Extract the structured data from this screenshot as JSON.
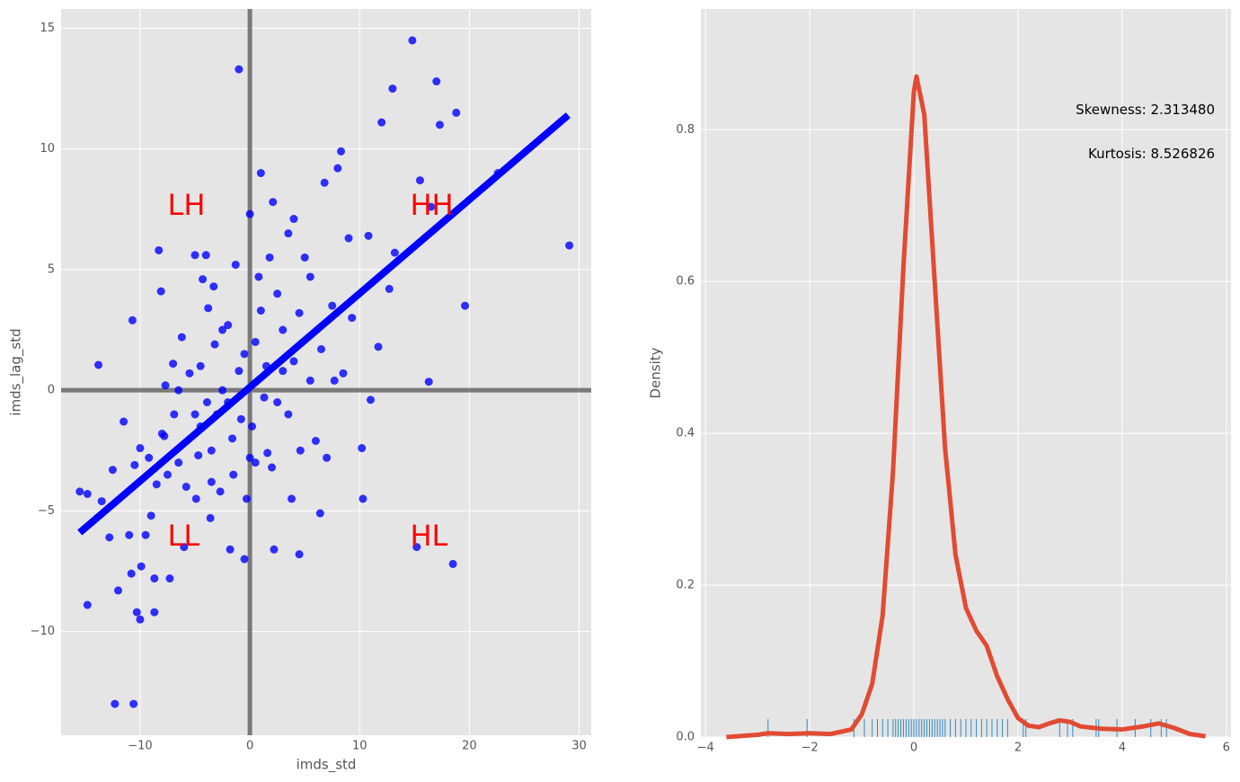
{
  "chart_data": [
    {
      "type": "scatter",
      "xlabel": "imds_std",
      "ylabel": "imds_lag_std",
      "xlim": [
        -17.2,
        31.1
      ],
      "ylim": [
        -14.3,
        15.8
      ],
      "xticks": [
        {
          "value": -10,
          "label": "−10"
        },
        0,
        10,
        20,
        30
      ],
      "yticks": [
        {
          "value": -10,
          "label": "−10"
        },
        {
          "value": -5,
          "label": "−5"
        },
        0,
        5,
        10,
        15
      ],
      "grid": true,
      "color": "#0000ff",
      "x": [
        -15.5,
        -14.8,
        -14.8,
        -13.8,
        -13.5,
        -12.8,
        -12.5,
        -12.3,
        -12,
        -11.5,
        -10.7,
        -10.8,
        -10.6,
        -10.5,
        -10.3,
        -10,
        -10,
        -9.9,
        -9.2,
        -9,
        -8.7,
        -8.7,
        -8.5,
        -8.3,
        -8.1,
        -7.8,
        -7.7,
        -7.5,
        -7.3,
        -7,
        -6.9,
        -6.5,
        -6.2,
        -6,
        -5.8,
        -5.5,
        -5,
        -4.9,
        -4.7,
        -4.5,
        -4.3,
        -4,
        -3.9,
        -3.8,
        -3.6,
        -3.5,
        -3.3,
        -3.2,
        -3,
        -2.7,
        -2.5,
        -2,
        -1.8,
        -1.6,
        -1.3,
        -1,
        -0.8,
        -0.5,
        -0.3,
        0,
        0.2,
        0.5,
        0.8,
        1,
        1.3,
        1.6,
        1.8,
        2.1,
        2.2,
        2.5,
        3,
        3.5,
        3.8,
        4,
        4.5,
        4.6,
        5,
        5.5,
        6,
        6.4,
        6.8,
        7,
        7.5,
        8,
        8.3,
        9,
        9.3,
        10.2,
        10.3,
        10.8,
        11,
        11.7,
        12,
        12.7,
        13,
        13.2,
        15.2,
        14.8,
        15.5,
        16.3,
        16.5,
        17,
        17.3,
        18.5,
        18.8,
        19.6,
        22.6,
        29.1,
        0.5,
        -0.5,
        1.5,
        2.5,
        -2,
        -1,
        3,
        4.5,
        -5,
        0,
        2,
        -3.5,
        5.5,
        6.5,
        7.7,
        8.5,
        -6.5,
        -2.5,
        1,
        3.5,
        4,
        -4.5,
        -1.5,
        -8,
        -9.5,
        -11
      ],
      "y": [
        -4.2,
        -4.3,
        -8.9,
        1.05,
        -4.6,
        -6.1,
        -3.3,
        -13,
        -8.3,
        -1.3,
        2.9,
        -7.6,
        -13,
        -3.1,
        -9.2,
        -9.5,
        -2.4,
        -7.3,
        -2.8,
        -5.2,
        -7.8,
        -9.2,
        -3.9,
        5.8,
        4.1,
        -1.9,
        0.2,
        -3.5,
        -7.8,
        1.1,
        -1,
        -3,
        2.2,
        -6.5,
        -4,
        0.7,
        5.6,
        -4.5,
        -2.7,
        -1.5,
        4.6,
        5.6,
        -0.5,
        3.4,
        -5.3,
        -2.5,
        4.3,
        1.9,
        -1,
        -4.2,
        0,
        2.7,
        -6.6,
        -2,
        5.2,
        13.3,
        -1.2,
        -7,
        -4.5,
        7.3,
        -1.5,
        -3,
        4.7,
        9,
        -0.3,
        -2.6,
        5.5,
        7.8,
        -6.6,
        4,
        0.8,
        6.5,
        -4.5,
        7.1,
        -6.8,
        -2.5,
        5.5,
        0.4,
        -2.1,
        -5.1,
        8.6,
        -2.8,
        3.5,
        9.2,
        9.9,
        6.3,
        3,
        -2.4,
        -4.5,
        6.4,
        -0.4,
        1.8,
        11.1,
        4.2,
        12.5,
        5.7,
        -6.5,
        14.5,
        8.7,
        0.35,
        7.6,
        12.8,
        11,
        -7.2,
        11.5,
        3.5,
        9,
        6,
        2,
        1.5,
        1,
        -0.5,
        -0.5,
        0.8,
        2.5,
        3.2,
        -1,
        -2.8,
        -3.2,
        -3.8,
        4.7,
        1.7,
        0.4,
        0.7,
        0,
        2.5,
        3.3,
        -1,
        1.2,
        1,
        -3.5,
        -1.8,
        -6,
        -6
      ],
      "regression": {
        "x": [
          -15.5,
          29
        ],
        "y": [
          -5.9,
          11.4
        ],
        "color": "#0000ff"
      },
      "reference_lines": {
        "x": 0,
        "y": 0,
        "color": "#666666"
      },
      "annotations": [
        {
          "text": "LH",
          "x": -7.5,
          "y": 7.6,
          "align": "left",
          "color": "#ff0000"
        },
        {
          "text": "HH",
          "x": 14.6,
          "y": 7.6,
          "align": "left",
          "color": "#ff0000"
        },
        {
          "text": "LL",
          "x": -7.5,
          "y": -6.1,
          "align": "left",
          "color": "#ff0000"
        },
        {
          "text": "HL",
          "x": 14.6,
          "y": -6.1,
          "align": "left",
          "color": "#ff0000"
        }
      ]
    },
    {
      "type": "line",
      "ylabel": "Density",
      "xlim": [
        -4.09,
        6.09
      ],
      "ylim": [
        0,
        0.959
      ],
      "xticks": [
        {
          "value": -4,
          "label": "−4"
        },
        {
          "value": -2,
          "label": "−2"
        },
        0,
        2,
        4,
        6
      ],
      "yticks": [
        {
          "value": 0,
          "label": "0.0"
        },
        0.2,
        0.4,
        0.6,
        0.8
      ],
      "grid": true,
      "color": "#e24a33",
      "x": [
        -3.6,
        -3,
        -2.8,
        -2.4,
        -2,
        -1.6,
        -1.2,
        -1,
        -0.8,
        -0.6,
        -0.4,
        -0.2,
        0,
        0.05,
        0.2,
        0.4,
        0.6,
        0.8,
        1,
        1.2,
        1.4,
        1.6,
        1.8,
        2,
        2.2,
        2.4,
        2.6,
        2.8,
        3,
        3.2,
        3.6,
        4,
        4.4,
        4.7,
        5,
        5.3,
        5.6
      ],
      "y": [
        0,
        0.003,
        0.005,
        0.004,
        0.005,
        0.004,
        0.01,
        0.03,
        0.07,
        0.16,
        0.35,
        0.62,
        0.85,
        0.87,
        0.82,
        0.6,
        0.38,
        0.24,
        0.17,
        0.14,
        0.12,
        0.08,
        0.05,
        0.025,
        0.015,
        0.013,
        0.018,
        0.022,
        0.02,
        0.014,
        0.011,
        0.01,
        0.014,
        0.018,
        0.012,
        0.004,
        0.001
      ],
      "rug": [
        -2.8,
        -2.05,
        -1.15,
        -0.95,
        -0.8,
        -0.7,
        -0.6,
        -0.5,
        -0.4,
        -0.35,
        -0.3,
        -0.25,
        -0.2,
        -0.15,
        -0.1,
        -0.05,
        0,
        0.05,
        0.1,
        0.15,
        0.2,
        0.25,
        0.3,
        0.35,
        0.4,
        0.45,
        0.5,
        0.55,
        0.6,
        0.7,
        0.8,
        0.9,
        1,
        1.1,
        1.2,
        1.3,
        1.4,
        1.5,
        1.6,
        1.7,
        1.8,
        2.1,
        2.15,
        2.8,
        2.95,
        3.05,
        3.5,
        3.55,
        3.9,
        4.25,
        4.55,
        4.75,
        4.85
      ],
      "rug_color": "#348abd",
      "annotations": [
        {
          "text": "Skewness: 2.313480",
          "x": 5.78,
          "y": 0.826,
          "align": "right",
          "color": "#000000"
        },
        {
          "text": "Kurtosis: 8.526826",
          "x": 5.78,
          "y": 0.768,
          "align": "right",
          "color": "#000000"
        }
      ]
    }
  ]
}
